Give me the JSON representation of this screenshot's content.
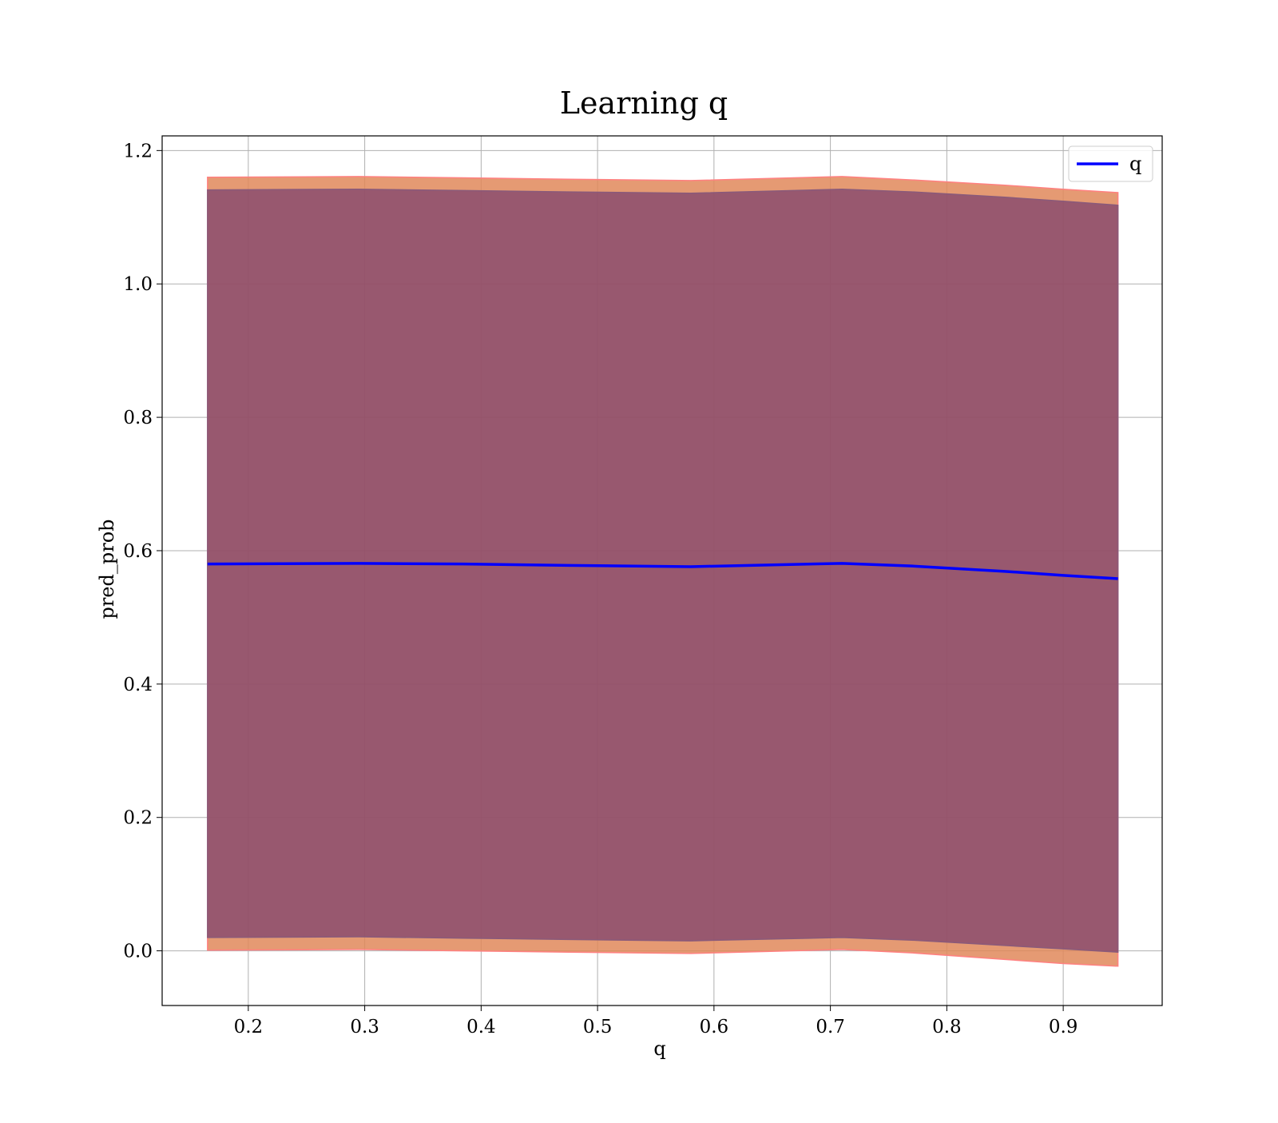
{
  "chart_data": {
    "type": "line",
    "title": "Learning q",
    "xlabel": "q",
    "ylabel": "pred_prob",
    "xlim": [
      0.126,
      0.985
    ],
    "ylim": [
      -0.082,
      1.222
    ],
    "xticks": [
      0.2,
      0.3,
      0.4,
      0.5,
      0.6,
      0.7,
      0.8,
      0.9
    ],
    "xtick_labels": [
      "0.2",
      "0.3",
      "0.4",
      "0.5",
      "0.6",
      "0.7",
      "0.8",
      "0.9"
    ],
    "yticks": [
      0.0,
      0.2,
      0.4,
      0.6,
      0.8,
      1.0,
      1.2
    ],
    "ytick_labels": [
      "0.0",
      "0.2",
      "0.4",
      "0.6",
      "0.8",
      "1.0",
      "1.2"
    ],
    "grid": true,
    "legend": {
      "position": "top-right",
      "entries": [
        "q"
      ]
    },
    "x": [
      0.165,
      0.295,
      0.385,
      0.475,
      0.58,
      0.71,
      0.77,
      0.85,
      0.9,
      0.947
    ],
    "series": [
      {
        "name": "q",
        "color": "#0000ff",
        "values": [
          0.58,
          0.581,
          0.58,
          0.578,
          0.576,
          0.581,
          0.577,
          0.569,
          0.563,
          0.558
        ]
      }
    ],
    "bands": [
      {
        "color": "#e0885a",
        "edge_color": "#ff8080",
        "lower": [
          0.001,
          0.002,
          0.0,
          -0.002,
          -0.004,
          0.002,
          -0.003,
          -0.013,
          -0.019,
          -0.023
        ],
        "upper": [
          1.16,
          1.161,
          1.159,
          1.157,
          1.155,
          1.161,
          1.156,
          1.148,
          1.142,
          1.137
        ]
      },
      {
        "color": "#7a3e6e",
        "edge_color": "#8a5a7a",
        "lower": [
          0.02,
          0.021,
          0.019,
          0.017,
          0.015,
          0.02,
          0.016,
          0.008,
          0.003,
          -0.002
        ],
        "upper": [
          1.141,
          1.142,
          1.14,
          1.138,
          1.136,
          1.142,
          1.138,
          1.13,
          1.124,
          1.118
        ]
      }
    ]
  }
}
